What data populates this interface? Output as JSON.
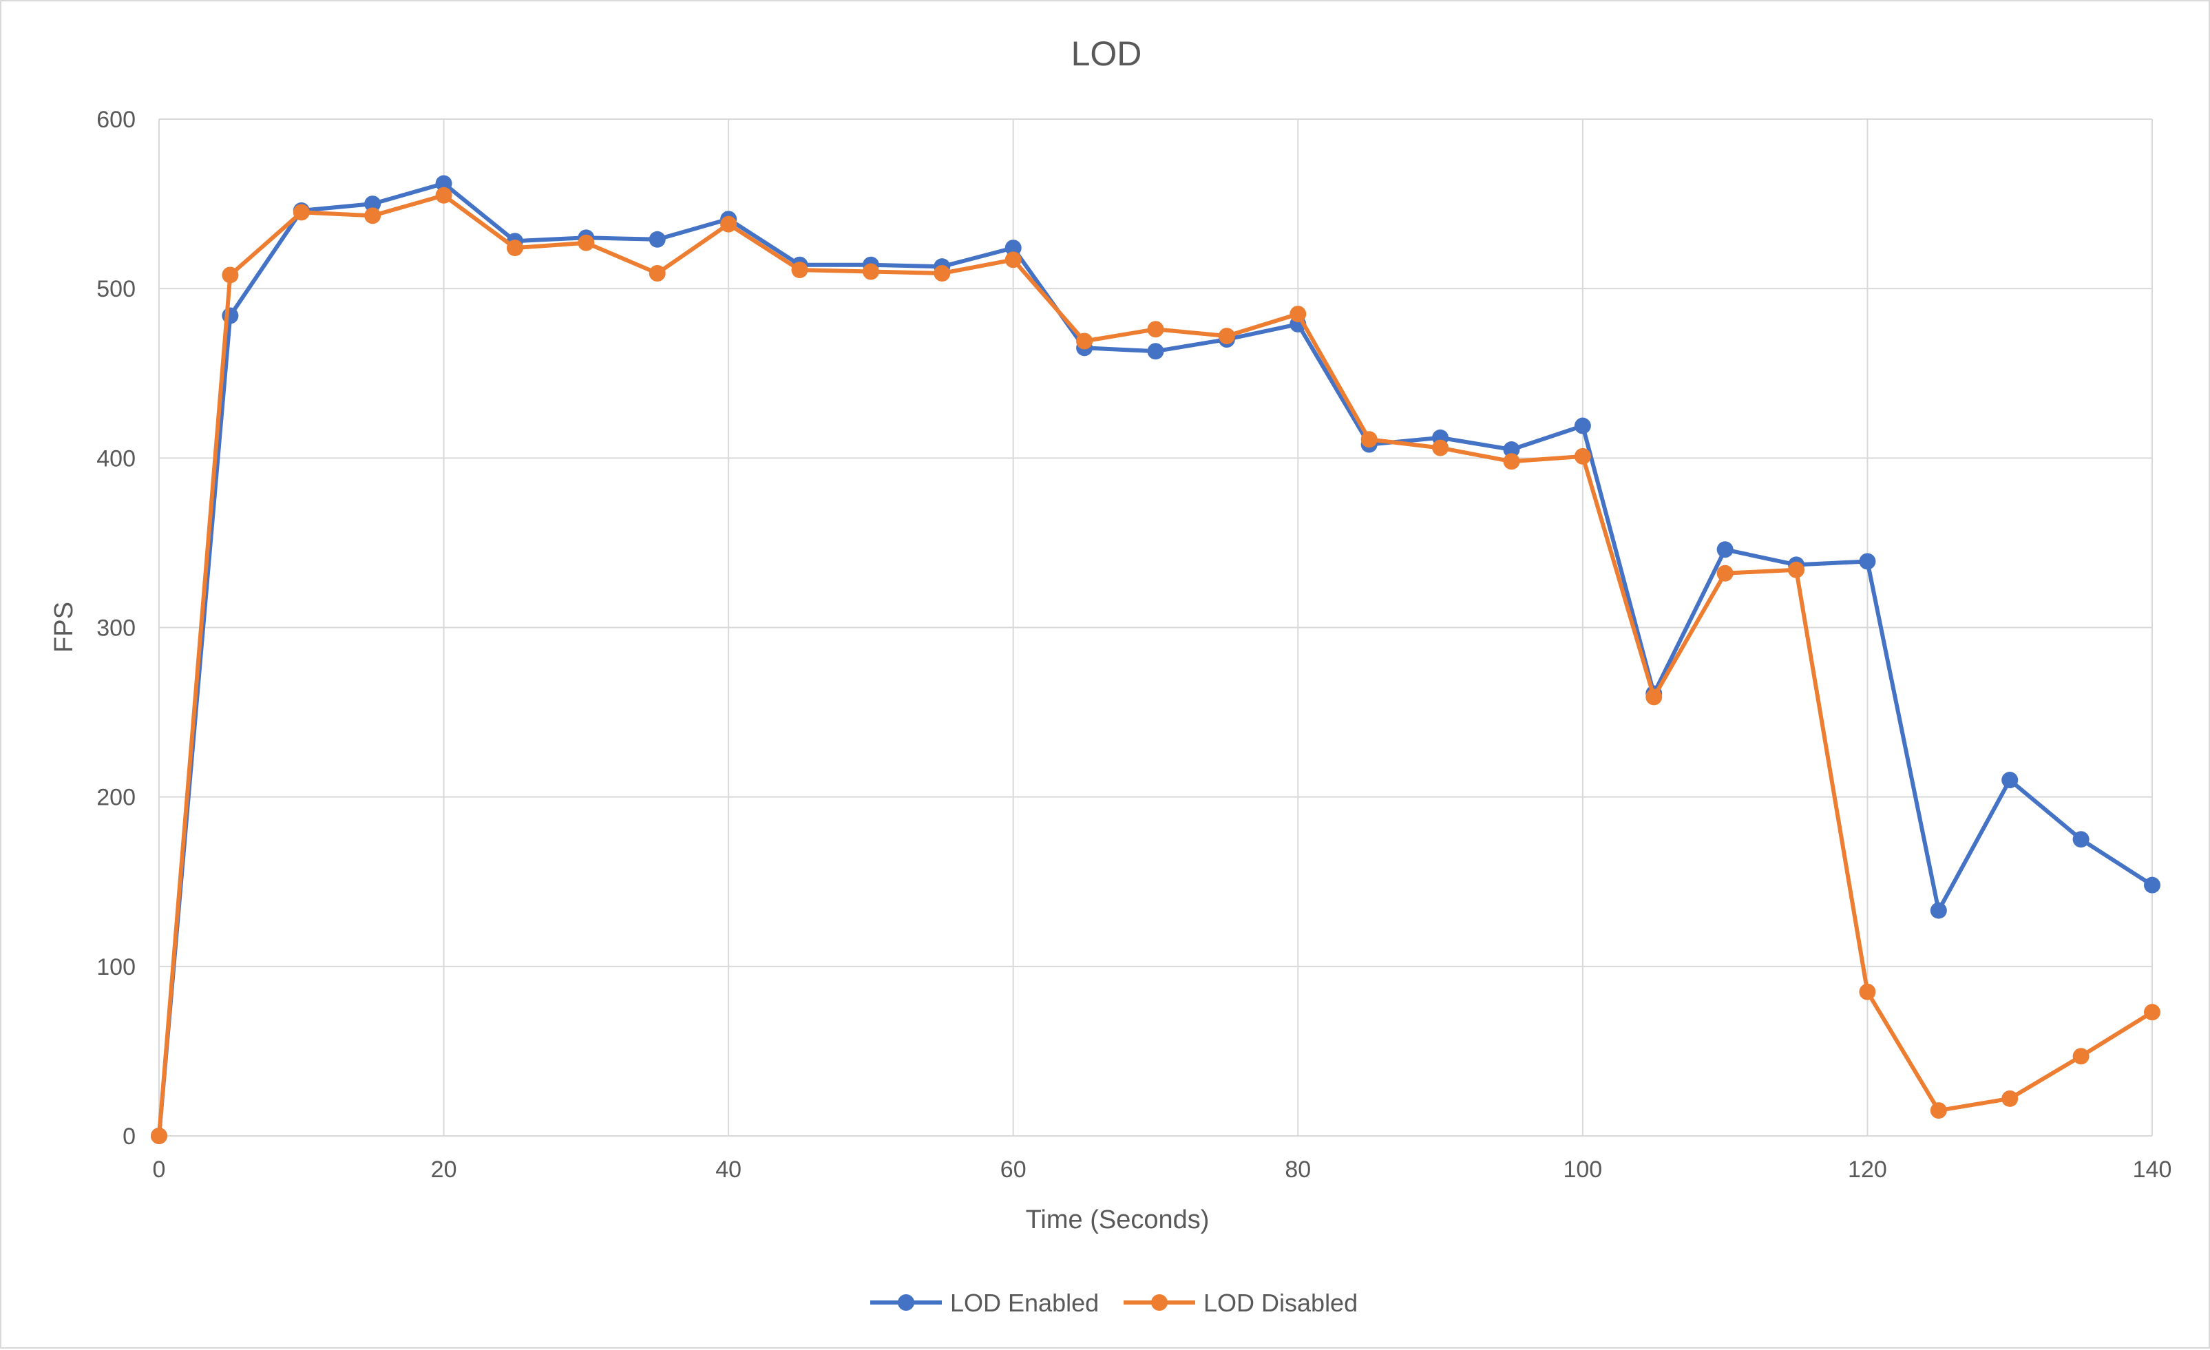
{
  "colors": {
    "series_1": "#4472C4",
    "series_2": "#ED7D31",
    "grid": "#d9d9d9",
    "text": "#595959"
  },
  "chart_data": {
    "type": "line",
    "title": "LOD",
    "xlabel": "Time (Seconds)",
    "ylabel": "FPS",
    "xlim": [
      0,
      140
    ],
    "ylim": [
      0,
      600
    ],
    "x_ticks": [
      0,
      20,
      40,
      60,
      80,
      100,
      120,
      140
    ],
    "y_ticks": [
      0,
      100,
      200,
      300,
      400,
      500,
      600
    ],
    "grid": true,
    "legend_position": "bottom",
    "x": [
      0,
      5,
      10,
      15,
      20,
      25,
      30,
      35,
      40,
      45,
      50,
      55,
      60,
      65,
      70,
      75,
      80,
      85,
      90,
      95,
      100,
      105,
      110,
      115,
      120,
      125,
      130,
      135,
      140
    ],
    "series": [
      {
        "name": "LOD Enabled",
        "color": "#4472C4",
        "values": [
          0,
          484,
          546,
          550,
          562,
          528,
          530,
          529,
          541,
          514,
          514,
          513,
          524,
          465,
          463,
          470,
          479,
          408,
          412,
          405,
          419,
          261,
          346,
          337,
          339,
          133,
          210,
          175,
          148
        ]
      },
      {
        "name": "LOD Disabled",
        "color": "#ED7D31",
        "values": [
          0,
          508,
          545,
          543,
          555,
          524,
          527,
          509,
          538,
          511,
          510,
          509,
          517,
          469,
          476,
          472,
          485,
          411,
          406,
          398,
          401,
          259,
          332,
          334,
          85,
          15,
          22,
          47,
          73
        ]
      }
    ]
  }
}
